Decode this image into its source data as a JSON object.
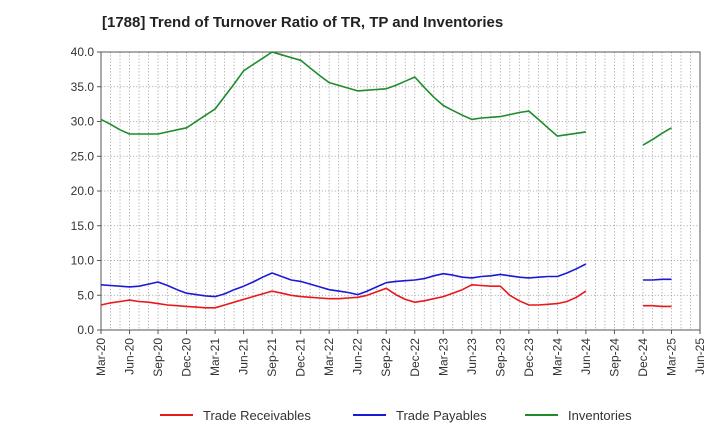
{
  "chart_data": {
    "type": "line",
    "title": "[1788]  Trend of Turnover Ratio of TR, TP and Inventories",
    "xlabel": "",
    "ylabel": "",
    "ylim": [
      0,
      40
    ],
    "y_ticks": [
      "0.0",
      "5.0",
      "10.0",
      "15.0",
      "20.0",
      "25.0",
      "30.0",
      "35.0",
      "40.0"
    ],
    "x_tick_labels": [
      "Mar-20",
      "Jun-20",
      "Sep-20",
      "Dec-20",
      "Mar-21",
      "Jun-21",
      "Sep-21",
      "Dec-21",
      "Mar-22",
      "Jun-22",
      "Sep-22",
      "Dec-22",
      "Mar-23",
      "Jun-23",
      "Sep-23",
      "Dec-23",
      "Mar-24",
      "Jun-24",
      "Sep-24",
      "Dec-24",
      "Mar-25",
      "Jun-25"
    ],
    "x": [
      "2020-03",
      "2020-04",
      "2020-05",
      "2020-06",
      "2020-07",
      "2020-08",
      "2020-09",
      "2020-10",
      "2020-11",
      "2020-12",
      "2021-01",
      "2021-02",
      "2021-03",
      "2021-04",
      "2021-05",
      "2021-06",
      "2021-07",
      "2021-08",
      "2021-09",
      "2021-10",
      "2021-11",
      "2021-12",
      "2022-01",
      "2022-02",
      "2022-03",
      "2022-04",
      "2022-05",
      "2022-06",
      "2022-07",
      "2022-08",
      "2022-09",
      "2022-10",
      "2022-11",
      "2022-12",
      "2023-01",
      "2023-02",
      "2023-03",
      "2023-04",
      "2023-05",
      "2023-06",
      "2023-07",
      "2023-08",
      "2023-09",
      "2023-10",
      "2023-11",
      "2023-12",
      "2024-01",
      "2024-02",
      "2024-03",
      "2024-04",
      "2024-05",
      "2024-06",
      "2024-07",
      "2024-08",
      "2024-09",
      "2024-10",
      "2024-11",
      "2024-12",
      "2025-01",
      "2025-02",
      "2025-03",
      "2025-04",
      "2025-05",
      "2025-06"
    ],
    "series": [
      {
        "name": "Trade Receivables",
        "color": "#e8191c",
        "values": [
          3.6,
          3.9,
          4.1,
          4.3,
          4.1,
          4.0,
          3.8,
          3.6,
          3.5,
          3.4,
          3.3,
          3.2,
          3.2,
          3.6,
          4.0,
          4.4,
          4.8,
          5.2,
          5.6,
          5.3,
          5.0,
          4.8,
          4.7,
          4.6,
          4.5,
          4.5,
          4.6,
          4.7,
          5.0,
          5.5,
          6.0,
          5.1,
          4.4,
          4.0,
          4.2,
          4.5,
          4.8,
          5.3,
          5.8,
          6.5,
          6.4,
          6.3,
          6.3,
          5.0,
          4.2,
          3.6,
          3.6,
          3.7,
          3.8,
          4.1,
          4.7,
          5.6,
          null,
          null,
          null,
          null,
          null,
          3.5,
          3.5,
          3.4,
          3.4,
          null,
          null,
          null
        ]
      },
      {
        "name": "Trade Payables",
        "color": "#1a1ad6",
        "values": [
          6.5,
          6.4,
          6.3,
          6.2,
          6.3,
          6.6,
          6.9,
          6.4,
          5.8,
          5.3,
          5.1,
          4.9,
          4.8,
          5.2,
          5.8,
          6.3,
          6.9,
          7.6,
          8.2,
          7.7,
          7.2,
          7.0,
          6.6,
          6.2,
          5.8,
          5.6,
          5.4,
          5.1,
          5.6,
          6.2,
          6.8,
          7.0,
          7.1,
          7.2,
          7.4,
          7.8,
          8.1,
          7.9,
          7.6,
          7.5,
          7.7,
          7.8,
          8.0,
          7.8,
          7.6,
          7.5,
          7.6,
          7.7,
          7.7,
          8.2,
          8.8,
          9.5,
          null,
          null,
          null,
          null,
          null,
          7.2,
          7.2,
          7.3,
          7.3,
          null,
          null,
          null
        ]
      },
      {
        "name": "Inventories",
        "color": "#1e8c2a",
        "values": [
          30.3,
          29.6,
          28.8,
          28.2,
          28.2,
          28.2,
          28.2,
          28.5,
          28.8,
          29.1,
          30.0,
          30.9,
          31.8,
          33.6,
          35.4,
          37.3,
          38.2,
          39.1,
          40.0,
          39.6,
          39.2,
          38.8,
          37.7,
          36.6,
          35.6,
          35.2,
          34.8,
          34.4,
          34.5,
          34.6,
          34.7,
          35.2,
          35.8,
          36.4,
          34.9,
          33.5,
          32.3,
          31.6,
          30.9,
          30.3,
          30.5,
          30.6,
          30.7,
          31.0,
          31.3,
          31.5,
          30.3,
          29.1,
          27.9,
          28.1,
          28.3,
          28.5,
          null,
          null,
          null,
          null,
          null,
          26.6,
          27.4,
          28.3,
          29.1,
          null,
          null,
          null
        ]
      }
    ],
    "grid": true,
    "legend_position": "bottom"
  }
}
